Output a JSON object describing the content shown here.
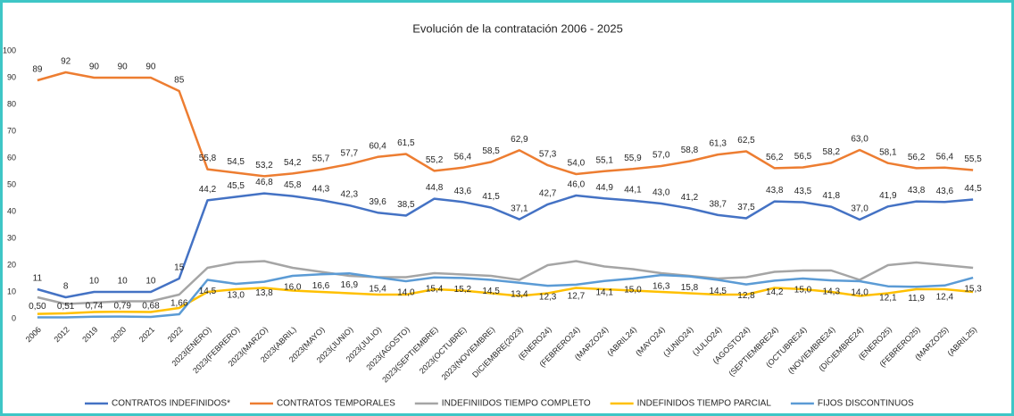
{
  "chart_data": {
    "type": "line",
    "title": "Evolución de la contratación 2006 - 2025",
    "categories": [
      "2006",
      "2012",
      "2019",
      "2020",
      "2021",
      "2022",
      "2023(ENERO)",
      "2023(FEBRERO)",
      "2023(MARZO)",
      "2023(ABRIL)",
      "2023(MAYO)",
      "2023(JUNIO)",
      "2023(JULIO)",
      "2023(AGOSTO)",
      "2023(SEPTIEMBRE)",
      "2023(OCTUBRE)",
      "2023(NOVIEMBRE)",
      "DICIEMBRE(2023)",
      "(ENERO24)",
      "(FEBRERO24)",
      "(MARZO24)",
      "(ABRIL24)",
      "(MAYO24)",
      "(JUNIO24)",
      "(JULIO24)",
      "(AGOSTO24)",
      "(SEPTIEMBRE24)",
      "(OCTUBRE24)",
      "(NOVIEMBRE24)",
      "(DICIEMBRE24)",
      "(ENERO25)",
      "(FEBRERO25)",
      "(MARZO25)",
      "(ABRIL25)"
    ],
    "series": [
      {
        "name": "CONTRATOS INDEFINIDOS*",
        "color": "#4472c4",
        "values": [
          11,
          8,
          10,
          10,
          10,
          15,
          44.2,
          45.5,
          46.8,
          45.8,
          44.3,
          42.3,
          39.6,
          38.5,
          44.8,
          43.6,
          41.5,
          37.1,
          42.7,
          46.0,
          44.9,
          44.1,
          43.0,
          41.2,
          38.7,
          37.5,
          43.8,
          43.5,
          41.8,
          37.0,
          41.9,
          43.8,
          43.6,
          44.5
        ],
        "value_labels": [
          "11",
          "8",
          "10",
          "10",
          "10",
          "15",
          "44,2",
          "45,5",
          "46,8",
          "45,8",
          "44,3",
          "42,3",
          "39,6",
          "38,5",
          "44,8",
          "43,6",
          "41,5",
          "37,1",
          "42,7",
          "46,0",
          "44,9",
          "44,1",
          "43,0",
          "41,2",
          "38,7",
          "37,5",
          "43,8",
          "43,5",
          "41,8",
          "37,0",
          "41,9",
          "43,8",
          "43,6",
          "44,5"
        ]
      },
      {
        "name": "CONTRATOS TEMPORALES",
        "color": "#ed7d31",
        "values": [
          89,
          92,
          90,
          90,
          90,
          85,
          55.8,
          54.5,
          53.2,
          54.2,
          55.7,
          57.7,
          60.4,
          61.5,
          55.2,
          56.4,
          58.5,
          62.9,
          57.3,
          54.0,
          55.1,
          55.9,
          57.0,
          58.8,
          61.3,
          62.5,
          56.2,
          56.5,
          58.2,
          63.0,
          58.1,
          56.2,
          56.4,
          55.5
        ],
        "value_labels": [
          "89",
          "92",
          "90",
          "90",
          "90",
          "85",
          "55,8",
          "54,5",
          "53,2",
          "54,2",
          "55,7",
          "57,7",
          "60,4",
          "61,5",
          "55,2",
          "56,4",
          "58,5",
          "62,9",
          "57,3",
          "54,0",
          "55,1",
          "55,9",
          "57,0",
          "58,8",
          "61,3",
          "62,5",
          "56,2",
          "56,5",
          "58,2",
          "63,0",
          "58,1",
          "56,2",
          "56,4",
          "55,5"
        ]
      },
      {
        "name": "INDEFINIIDOS TIEMPO COMPLETO",
        "color": "#a5a5a5",
        "values": [
          8,
          5.5,
          6,
          6.5,
          6.5,
          9,
          19,
          21,
          21.5,
          19,
          17.5,
          16,
          15.5,
          15.5,
          17,
          16.5,
          16,
          14.5,
          20,
          21.5,
          19.5,
          18.5,
          17,
          16,
          15,
          15.5,
          17.5,
          18,
          18,
          14.5,
          20,
          21,
          20,
          19
        ]
      },
      {
        "name": "INDEFINIDOS TIEMPO PARCIAL",
        "color": "#ffc000",
        "values": [
          1.8,
          2,
          2.5,
          2.6,
          2.5,
          4,
          10,
          11,
          11.5,
          10.5,
          10,
          9.5,
          9,
          9,
          11,
          10.5,
          9.5,
          8.5,
          9.5,
          11.5,
          11,
          10.5,
          10,
          9.5,
          9,
          9,
          11.5,
          11,
          10,
          8.5,
          9.5,
          11,
          11,
          10
        ]
      },
      {
        "name": "FIJOS DISCONTINUOS",
        "color": "#5b9bd5",
        "values": [
          0.5,
          0.51,
          0.74,
          0.79,
          0.68,
          1.66,
          14.5,
          13.0,
          13.8,
          16.0,
          16.6,
          16.9,
          15.4,
          14.0,
          15.4,
          15.2,
          14.5,
          13.4,
          12.3,
          12.7,
          14.1,
          15.0,
          16.3,
          15.8,
          14.5,
          12.8,
          14.2,
          15.0,
          14.3,
          14.0,
          12.1,
          11.9,
          12.4,
          15.3
        ],
        "value_labels": [
          "0,50",
          "0,51",
          "0,74",
          "0,79",
          "0,68",
          "1,66",
          "14,5",
          "13,0",
          "13,8",
          "16,0",
          "16,6",
          "16,9",
          "15,4",
          "14,0",
          "15,4",
          "15,2",
          "14,5",
          "13,4",
          "12,3",
          "12,7",
          "14,1",
          "15,0",
          "16,3",
          "15,8",
          "14,5",
          "12,8",
          "14,2",
          "15,0",
          "14,3",
          "14,0",
          "12,1",
          "11,9",
          "12,4",
          "15,3"
        ]
      }
    ],
    "ylim": [
      0,
      100
    ],
    "yticks": [
      0,
      10,
      20,
      30,
      40,
      50,
      60,
      70,
      80,
      90,
      100
    ],
    "grid": false,
    "legend": "bottom"
  }
}
